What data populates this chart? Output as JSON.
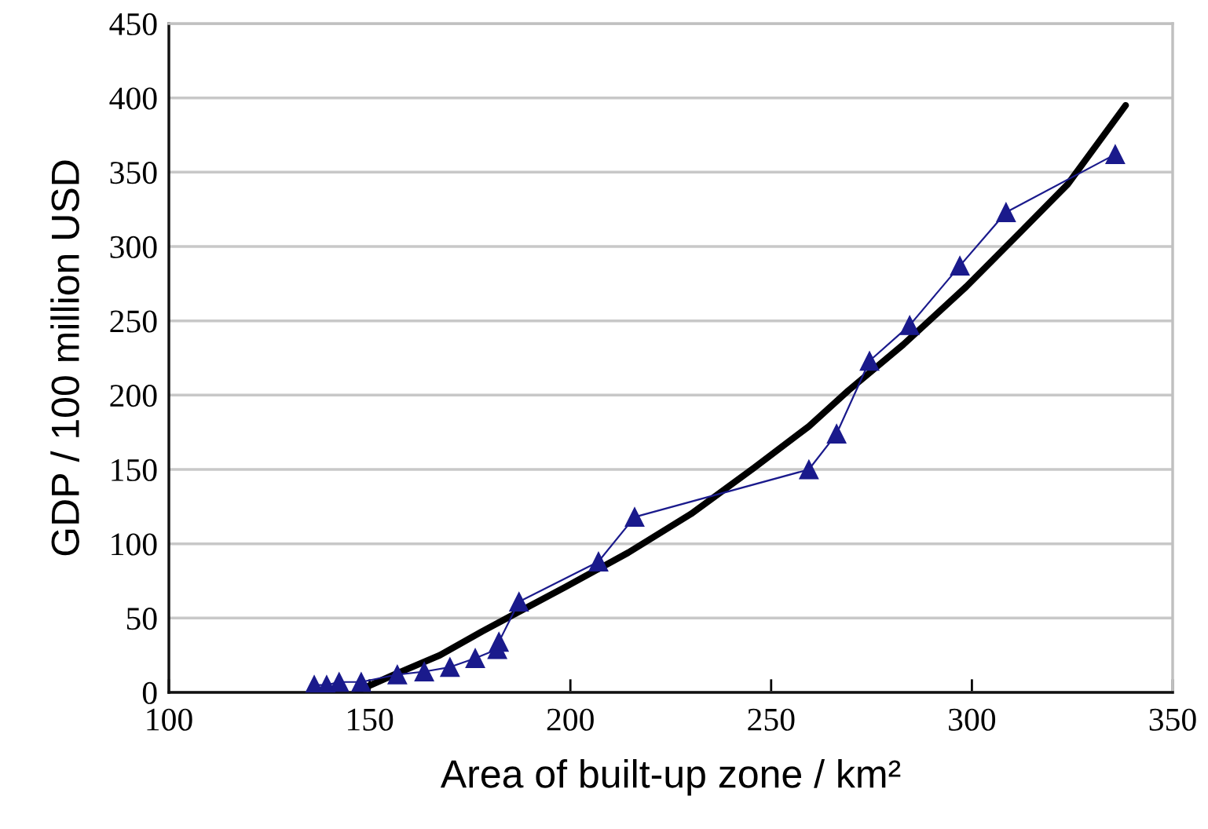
{
  "chart_data": {
    "type": "line",
    "xlabel": "Area of built-up zone / km²",
    "ylabel": "GDP / 100 million USD",
    "xlim": [
      100,
      350
    ],
    "xticks": [
      100,
      150,
      200,
      250,
      300,
      350
    ],
    "ylim": [
      0,
      450
    ],
    "yticks": [
      0,
      50,
      100,
      150,
      200,
      250,
      300,
      350,
      400,
      450
    ],
    "grid": "y",
    "series": [
      {
        "color": "#1a1a8c",
        "marker": "triangle",
        "line_style": "solid",
        "x": [
          136.2,
          139.3,
          142.4,
          147.9,
          156.9,
          163.6,
          170.0,
          176.3,
          181.8,
          182.2,
          187.2,
          207.0,
          216.0,
          259.4,
          266.3,
          274.5,
          284.5,
          297.0,
          308.5,
          335.7
        ],
        "values": [
          5,
          5,
          7,
          7,
          12,
          14,
          17,
          23,
          29,
          34,
          61,
          88,
          118,
          150,
          174,
          223,
          247,
          287,
          323,
          362
        ]
      },
      {
        "color": "#000000",
        "marker": "none",
        "line_style": "solid",
        "x": [
          147,
          157,
          167.5,
          178,
          187,
          198.8,
          214.4,
          230,
          245.7,
          259.4,
          269.2,
          282.9,
          298.6,
          312.2,
          323.9,
          338.3
        ],
        "values": [
          1,
          13,
          25,
          41,
          54,
          71,
          94,
          120,
          151,
          179,
          203,
          234,
          273,
          310,
          342,
          395
        ]
      }
    ]
  }
}
